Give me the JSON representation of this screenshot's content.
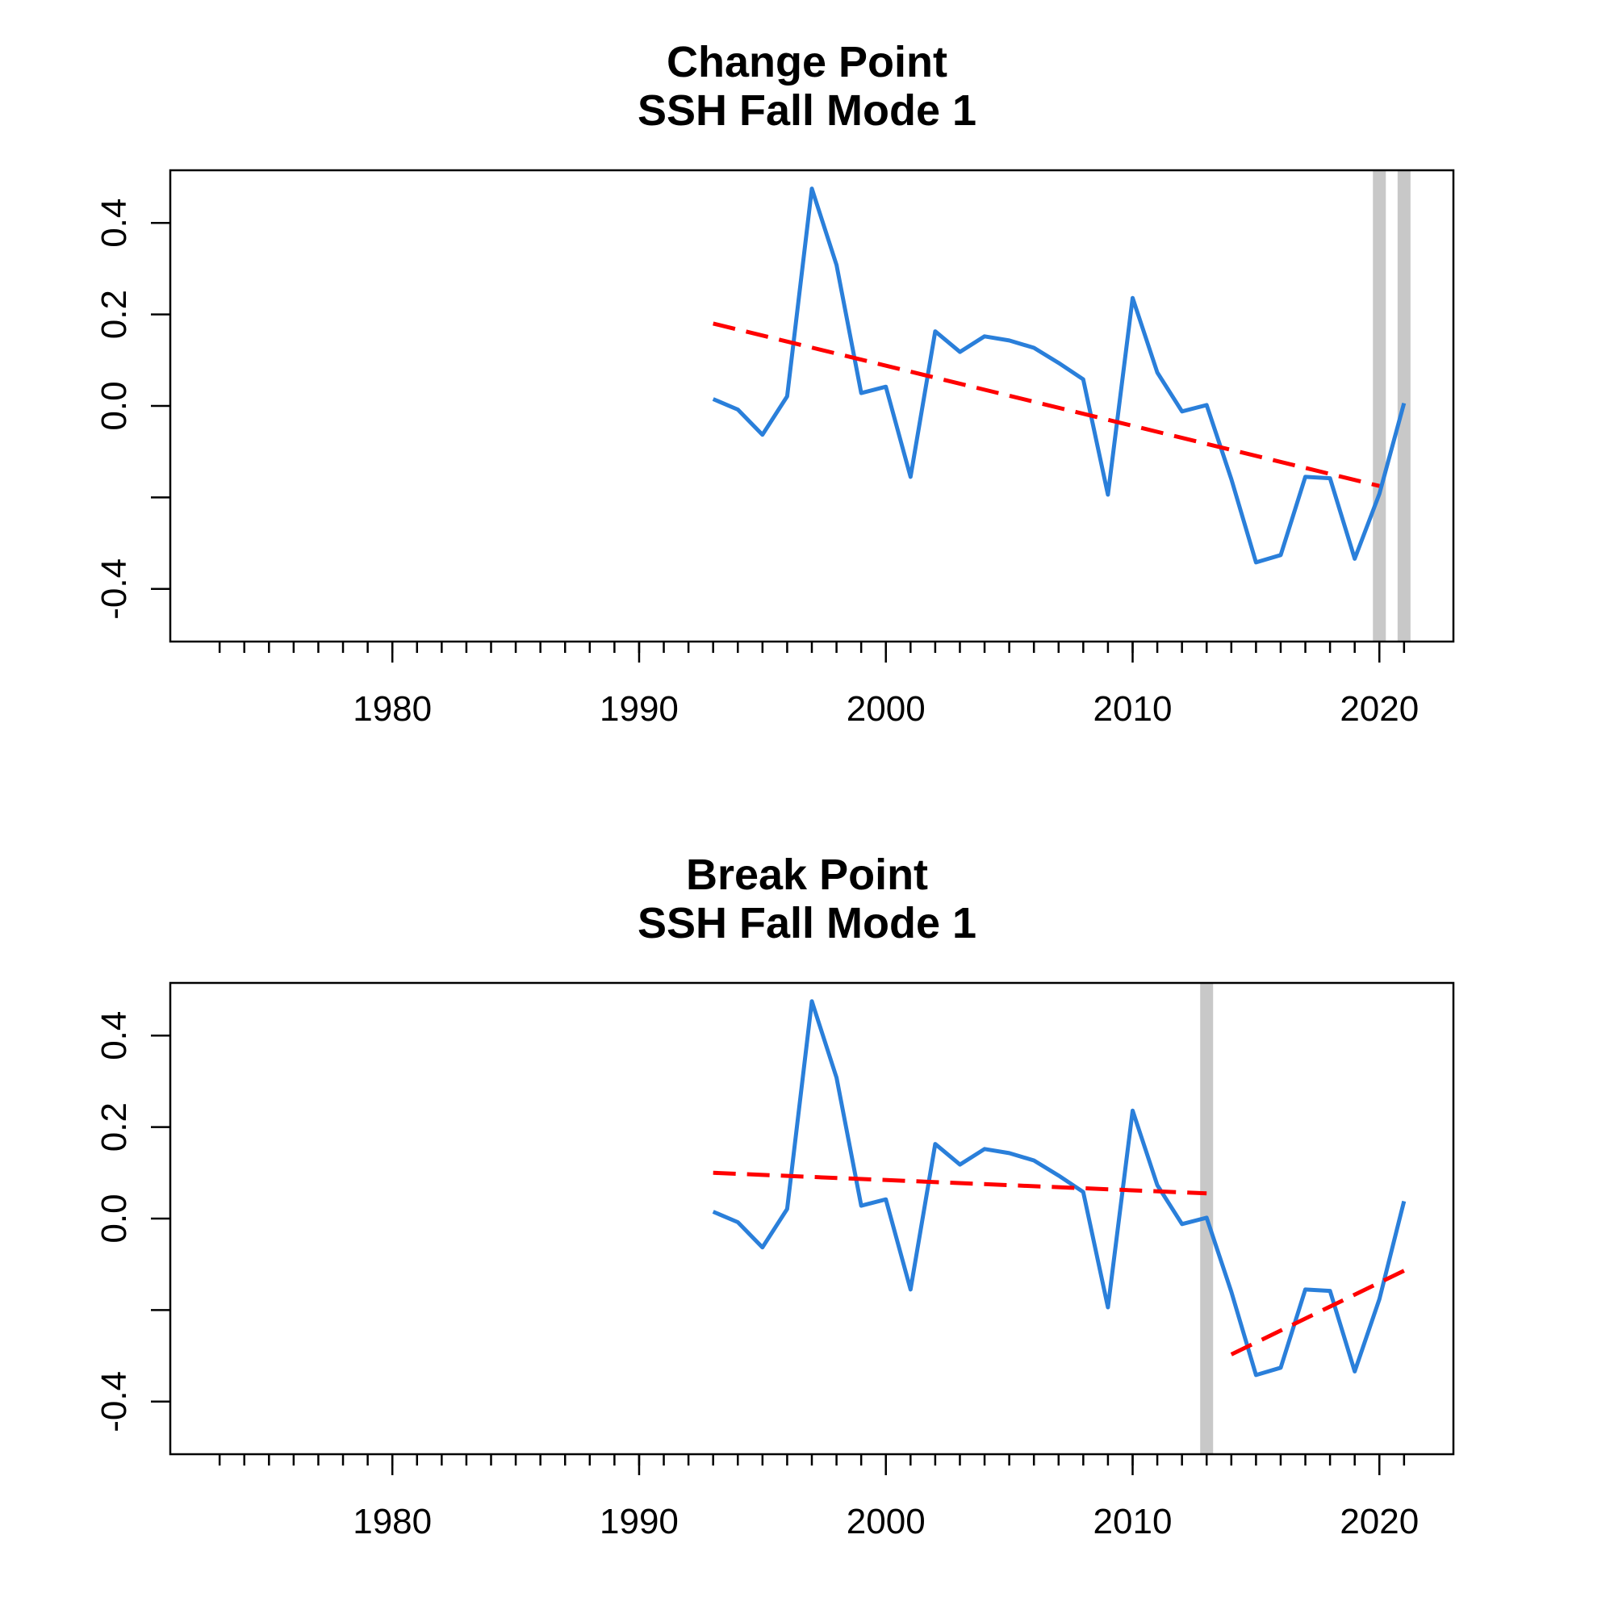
{
  "chart_data": [
    {
      "type": "line",
      "title": "Change Point",
      "subtitle": "SSH Fall Mode 1",
      "xlabel": "",
      "ylabel": "",
      "xlim": [
        1971,
        2023
      ],
      "ylim": [
        -0.515,
        0.515
      ],
      "x_ticks": {
        "values": [
          1980,
          1990,
          2000,
          2010,
          2020
        ],
        "labels": [
          "1980",
          "1990",
          "2000",
          "2010",
          "2020"
        ]
      },
      "x_minor_ticks": [
        1973,
        1974,
        1975,
        1976,
        1977,
        1978,
        1979,
        1980,
        1981,
        1982,
        1983,
        1984,
        1985,
        1986,
        1987,
        1988,
        1989,
        1990,
        1991,
        1992,
        1993,
        1994,
        1995,
        1996,
        1997,
        1998,
        1999,
        2000,
        2001,
        2002,
        2003,
        2004,
        2005,
        2006,
        2007,
        2008,
        2009,
        2010,
        2011,
        2012,
        2013,
        2014,
        2015,
        2016,
        2017,
        2018,
        2019,
        2020,
        2021
      ],
      "y_ticks": {
        "values": [
          -0.4,
          -0.2,
          0.0,
          0.2,
          0.4
        ],
        "labels": [
          "-0.4",
          "",
          "0.0",
          "0.2",
          "0.4"
        ]
      },
      "series": [
        {
          "color": "#2a7fda",
          "style": "solid",
          "x": [
            1993,
            1994,
            1995,
            1996,
            1997,
            1998,
            1999,
            2000,
            2001,
            2002,
            2003,
            2004,
            2005,
            2006,
            2007,
            2008,
            2009,
            2010,
            2011,
            2012,
            2013,
            2014,
            2015,
            2016,
            2017,
            2018,
            2019,
            2020,
            2021
          ],
          "y": [
            0.015,
            -0.008,
            -0.063,
            0.021,
            0.475,
            0.308,
            0.028,
            0.042,
            -0.155,
            0.163,
            0.118,
            0.152,
            0.143,
            0.127,
            0.094,
            0.058,
            -0.194,
            0.236,
            0.073,
            -0.012,
            0.002,
            -0.16,
            -0.342,
            -0.326,
            -0.155,
            -0.158,
            -0.334,
            -0.192,
            0.006
          ]
        },
        {
          "color": "#ff0000",
          "style": "dashed",
          "x": [
            1993,
            2020
          ],
          "y": [
            0.18,
            -0.175
          ]
        }
      ],
      "vertical_markers": [
        {
          "x": 2020,
          "color": "#c8c8c8"
        },
        {
          "x": 2021,
          "color": "#c8c8c8"
        }
      ],
      "grid": false,
      "legend": "none"
    },
    {
      "type": "line",
      "title": "Break Point",
      "subtitle": "SSH Fall Mode 1",
      "xlabel": "",
      "ylabel": "",
      "xlim": [
        1971,
        2023
      ],
      "ylim": [
        -0.515,
        0.515
      ],
      "x_ticks": {
        "values": [
          1980,
          1990,
          2000,
          2010,
          2020
        ],
        "labels": [
          "1980",
          "1990",
          "2000",
          "2010",
          "2020"
        ]
      },
      "x_minor_ticks": [
        1973,
        1974,
        1975,
        1976,
        1977,
        1978,
        1979,
        1980,
        1981,
        1982,
        1983,
        1984,
        1985,
        1986,
        1987,
        1988,
        1989,
        1990,
        1991,
        1992,
        1993,
        1994,
        1995,
        1996,
        1997,
        1998,
        1999,
        2000,
        2001,
        2002,
        2003,
        2004,
        2005,
        2006,
        2007,
        2008,
        2009,
        2010,
        2011,
        2012,
        2013,
        2014,
        2015,
        2016,
        2017,
        2018,
        2019,
        2020,
        2021
      ],
      "y_ticks": {
        "values": [
          -0.4,
          -0.2,
          0.0,
          0.2,
          0.4
        ],
        "labels": [
          "-0.4",
          "",
          "0.0",
          "0.2",
          "0.4"
        ]
      },
      "series": [
        {
          "color": "#2a7fda",
          "style": "solid",
          "x": [
            1993,
            1994,
            1995,
            1996,
            1997,
            1998,
            1999,
            2000,
            2001,
            2002,
            2003,
            2004,
            2005,
            2006,
            2007,
            2008,
            2009,
            2010,
            2011,
            2012,
            2013,
            2014,
            2015,
            2016,
            2017,
            2018,
            2019,
            2020,
            2021
          ],
          "y": [
            0.015,
            -0.008,
            -0.063,
            0.021,
            0.475,
            0.308,
            0.028,
            0.042,
            -0.155,
            0.163,
            0.118,
            0.152,
            0.143,
            0.127,
            0.094,
            0.058,
            -0.194,
            0.236,
            0.073,
            -0.012,
            0.002,
            -0.16,
            -0.342,
            -0.326,
            -0.155,
            -0.158,
            -0.334,
            -0.176,
            0.038
          ]
        },
        {
          "color": "#ff0000",
          "style": "dashed",
          "x": [
            1993,
            2013
          ],
          "y": [
            0.1,
            0.055
          ]
        },
        {
          "color": "#ff0000",
          "style": "dashed",
          "x": [
            2014,
            2021
          ],
          "y": [
            -0.297,
            -0.114
          ]
        }
      ],
      "vertical_markers": [
        {
          "x": 2013,
          "color": "#c8c8c8"
        }
      ],
      "grid": false,
      "legend": "none"
    }
  ]
}
